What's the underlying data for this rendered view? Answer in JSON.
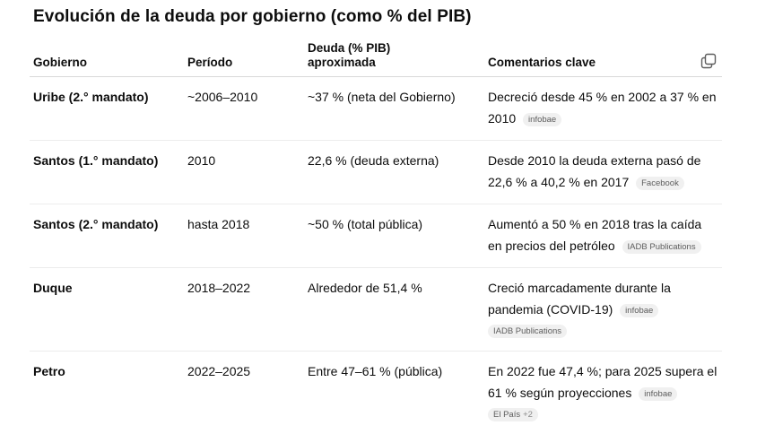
{
  "title": "Evolución de la deuda por gobierno (como % del PIB)",
  "headers": {
    "gobierno": "Gobierno",
    "periodo": "Período",
    "deuda_line1": "Deuda (% PIB)",
    "deuda_line2": "aproximada",
    "comentarios": "Comentarios clave"
  },
  "rows": [
    {
      "gobierno": "Uribe (2.° mandato)",
      "periodo": "~2006–2010",
      "deuda": "~37 % (neta del Gobierno)",
      "comentario": "Decreció desde 45 % en 2002 a 37 % en 2010",
      "sources": [
        "infobae"
      ]
    },
    {
      "gobierno": "Santos (1.° mandato)",
      "periodo": "2010",
      "deuda": "22,6 % (deuda externa)",
      "comentario": "Desde 2010 la deuda externa pasó de 22,6 % a 40,2 % en 2017",
      "sources": [
        "Facebook"
      ]
    },
    {
      "gobierno": "Santos (2.° mandato)",
      "periodo": "hasta 2018",
      "deuda": "~50 % (total pública)",
      "comentario": "Aumentó a 50 % en 2018 tras la caída en precios del petróleo",
      "sources": [
        "IADB Publications"
      ]
    },
    {
      "gobierno": "Duque",
      "periodo": "2018–2022",
      "deuda": "Alrededor de 51,4 %",
      "comentario": "Creció marcadamente durante la pandemia (COVID-19)",
      "sources": [
        "infobae",
        "IADB Publications"
      ]
    },
    {
      "gobierno": "Petro",
      "periodo": "2022–2025",
      "deuda": "Entre 47–61 % (pública)",
      "comentario": "En 2022 fue 47,4 %; para 2025 supera el 61 % según proyecciones",
      "sources": [
        "infobae",
        "El País"
      ],
      "extra_sources": "+2"
    }
  ],
  "icons": {
    "copy": "copy-icon"
  }
}
